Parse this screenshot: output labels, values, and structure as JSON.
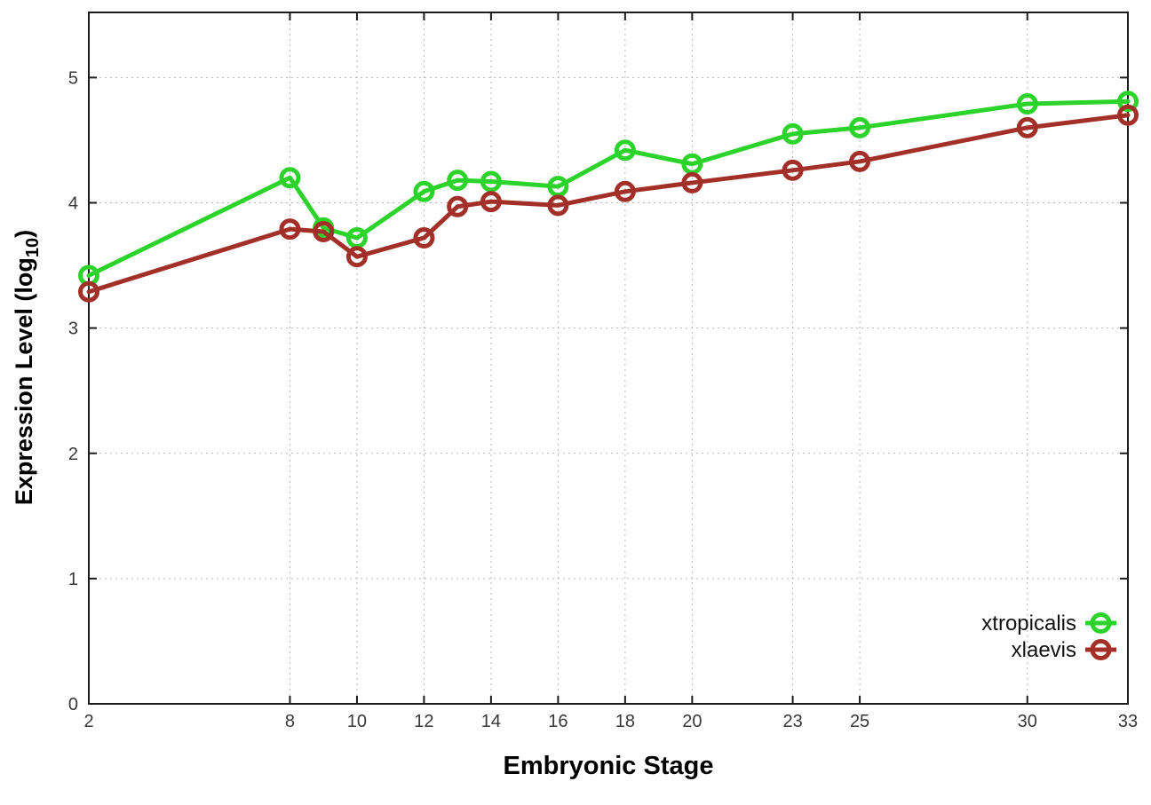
{
  "figure": {
    "background": "#ffffff"
  },
  "chart_data": {
    "type": "line",
    "title": "",
    "xlabel": "Embryonic Stage",
    "ylabel": "Expression Level (log10)",
    "ylabel_parts": {
      "text": "Expression Level (log",
      "subscript": "10",
      "suffix": ")"
    },
    "x": [
      2,
      8,
      9,
      10,
      12,
      13,
      14,
      16,
      18,
      20,
      23,
      25,
      30,
      33
    ],
    "series": [
      {
        "name": "xtropicalis",
        "color": "#2bd32b",
        "marker": "open-circle",
        "values": [
          3.42,
          4.2,
          3.8,
          3.72,
          4.09,
          4.18,
          4.17,
          4.13,
          4.42,
          4.31,
          4.55,
          4.6,
          4.79,
          4.81
        ]
      },
      {
        "name": "xlaevis",
        "color": "#a33028",
        "marker": "open-circle",
        "values": [
          3.29,
          3.79,
          3.77,
          3.57,
          3.72,
          3.97,
          4.01,
          3.98,
          4.09,
          4.16,
          4.26,
          4.33,
          4.6,
          4.7
        ]
      }
    ],
    "xticks": {
      "values": [
        2,
        8,
        10,
        12,
        14,
        16,
        18,
        20,
        23,
        25,
        30,
        33
      ],
      "labels": [
        "2",
        "8",
        "10",
        "12",
        "14",
        "16",
        "18",
        "20",
        "23",
        "25",
        "30",
        "33"
      ]
    },
    "yticks": {
      "values": [
        0,
        1,
        2,
        3,
        4,
        5
      ],
      "labels": [
        "0",
        "1",
        "2",
        "3",
        "4",
        "5"
      ]
    },
    "xlim": [
      2,
      33
    ],
    "ylim": [
      0,
      5.52
    ],
    "grid": true,
    "legend": {
      "position": "inside-bottom-right",
      "entries": [
        "xtropicalis",
        "xlaevis"
      ]
    },
    "colors": {
      "axis": "#1c1c1c",
      "grid": "#b8b8b8",
      "tick_text": "#383838",
      "label_text": "#000000",
      "background": "#ffffff"
    }
  }
}
